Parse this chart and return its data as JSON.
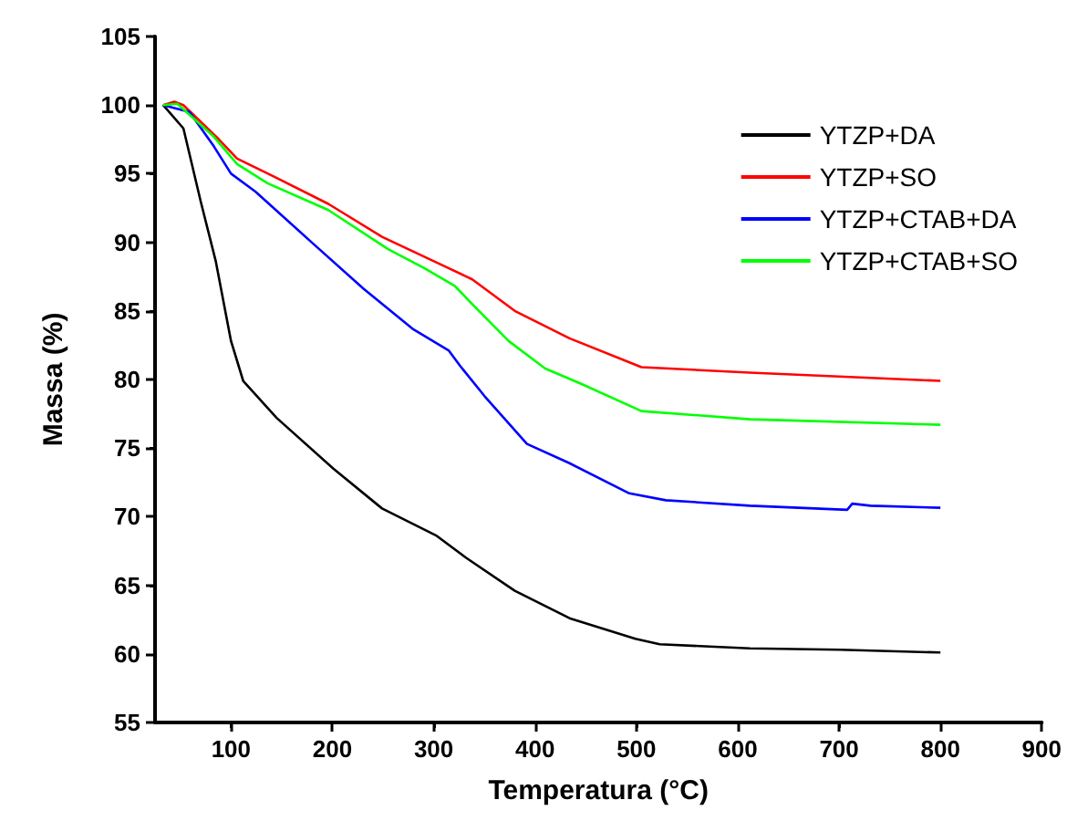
{
  "chart_data": {
    "type": "line",
    "xlabel": "Temperatura (°C)",
    "ylabel": "Massa (%)",
    "xlim": [
      25,
      900
    ],
    "xticks": [
      100,
      200,
      300,
      400,
      500,
      600,
      700,
      800,
      900
    ],
    "ylim": [
      55,
      105
    ],
    "yticks": [
      55,
      60,
      65,
      70,
      75,
      80,
      85,
      90,
      95,
      100,
      105
    ],
    "grid": false,
    "legend": "top right",
    "marker": "none",
    "line_style": "solid",
    "series": [
      {
        "name": "YTZP+DA",
        "color": "#000000",
        "x": [
          33,
          53,
          70,
          85,
          100,
          112,
          145,
          201,
          249,
          303,
          332,
          380,
          434,
          499,
          523,
          612,
          701,
          800
        ],
        "values": [
          100,
          98.3,
          93,
          88.6,
          82.8,
          79.9,
          77.2,
          73.5,
          70.6,
          68.6,
          67,
          64.6,
          62.6,
          61.1,
          60.7,
          60.4,
          60.3,
          60.1
        ]
      },
      {
        "name": "YTZP+SO",
        "color": "#ff0000",
        "x": [
          33,
          44,
          53,
          88,
          106,
          142,
          196,
          249,
          315,
          338,
          380,
          434,
          505,
          612,
          800
        ],
        "values": [
          100,
          100.25,
          100,
          97.5,
          96.1,
          94.8,
          92.8,
          90.4,
          88.1,
          87.3,
          85,
          83,
          80.9,
          80.5,
          79.9
        ]
      },
      {
        "name": "YTZP+CTAB+DA",
        "color": "#0000ff",
        "x": [
          33,
          59,
          83,
          100,
          124,
          178,
          231,
          279,
          315,
          326,
          350,
          392,
          434,
          493,
          529,
          612,
          708,
          713,
          731,
          800
        ],
        "values": [
          100,
          99.5,
          97,
          95,
          93.7,
          90.1,
          86.6,
          83.7,
          82.1,
          81,
          78.8,
          75.3,
          73.9,
          71.7,
          71.2,
          70.8,
          70.5,
          70.95,
          70.8,
          70.65
        ]
      },
      {
        "name": "YTZP+CTAB+SO",
        "color": "#00ff00",
        "x": [
          33,
          47,
          83,
          106,
          136,
          196,
          255,
          291,
          321,
          338,
          374,
          410,
          445,
          505,
          612,
          800
        ],
        "values": [
          100,
          100.1,
          97.7,
          95.7,
          94.3,
          92.35,
          89.5,
          88.1,
          86.8,
          85.5,
          82.8,
          80.8,
          79.7,
          77.7,
          77.1,
          76.7
        ]
      }
    ]
  }
}
